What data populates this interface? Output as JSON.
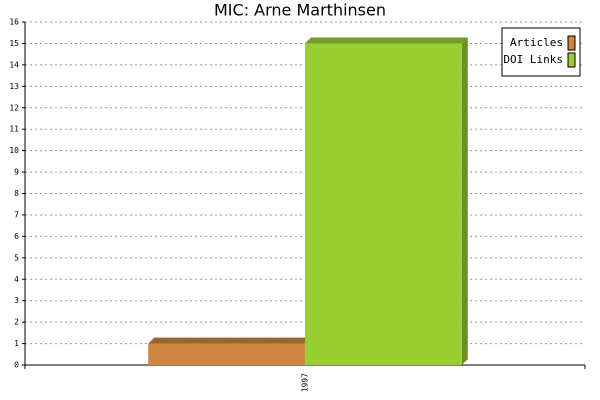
{
  "chart_data": {
    "type": "bar",
    "title": "MIC: Arne Marthinsen",
    "categories": [
      "1997"
    ],
    "series": [
      {
        "name": "Articles",
        "color": "#cd853f",
        "values": [
          1
        ]
      },
      {
        "name": "DOI Links",
        "color": "#9acd32",
        "values": [
          15
        ]
      }
    ],
    "ylim": [
      0,
      16
    ],
    "yticks": [
      0,
      1,
      2,
      3,
      4,
      5,
      6,
      7,
      8,
      9,
      10,
      11,
      12,
      13,
      14,
      15,
      16
    ],
    "grid": true,
    "legend": "top-right"
  }
}
